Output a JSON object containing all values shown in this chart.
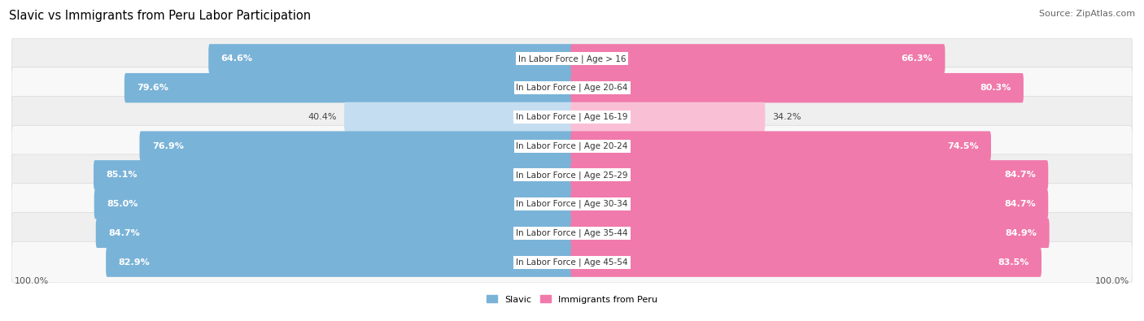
{
  "title": "Slavic vs Immigrants from Peru Labor Participation",
  "source": "Source: ZipAtlas.com",
  "categories": [
    "In Labor Force | Age > 16",
    "In Labor Force | Age 20-64",
    "In Labor Force | Age 16-19",
    "In Labor Force | Age 20-24",
    "In Labor Force | Age 25-29",
    "In Labor Force | Age 30-34",
    "In Labor Force | Age 35-44",
    "In Labor Force | Age 45-54"
  ],
  "slavic_values": [
    64.6,
    79.6,
    40.4,
    76.9,
    85.1,
    85.0,
    84.7,
    82.9
  ],
  "peru_values": [
    66.3,
    80.3,
    34.2,
    74.5,
    84.7,
    84.7,
    84.9,
    83.5
  ],
  "slavic_color": "#7ab3d8",
  "slavic_color_light": "#c5ddf0",
  "peru_color": "#f07aab",
  "peru_color_light": "#f9c0d5",
  "row_bg_even": "#efefef",
  "row_bg_odd": "#f8f8f8",
  "max_value": 100.0,
  "legend_slavic": "Slavic",
  "legend_peru": "Immigrants from Peru",
  "title_fontsize": 10.5,
  "source_fontsize": 8,
  "value_fontsize": 8,
  "category_fontsize": 7.5,
  "tick_fontsize": 8
}
